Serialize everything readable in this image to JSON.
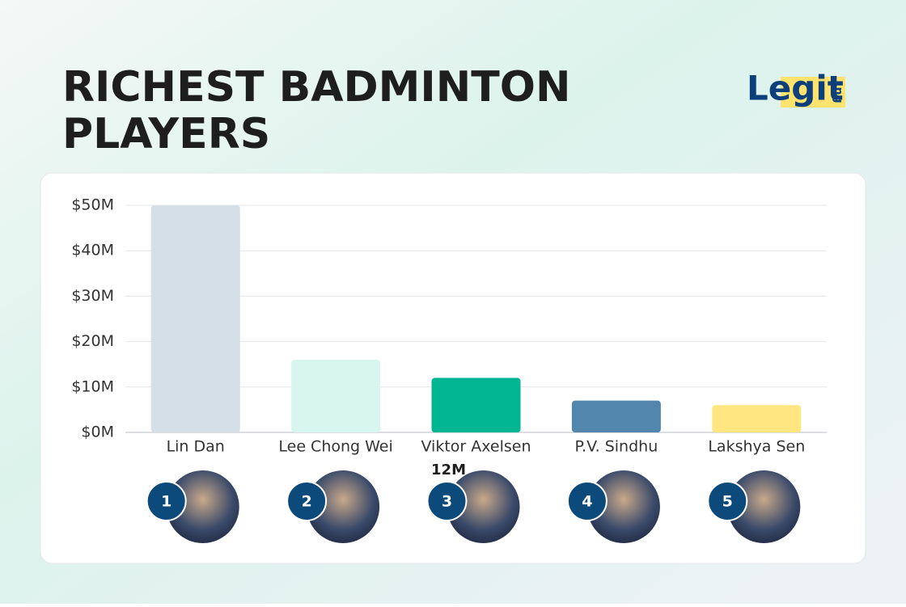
{
  "chart_data": {
    "type": "bar",
    "title": "RICHEST BADMINTON PLAYERS",
    "brand": "Legit",
    "brand_suffix": ".ng",
    "categories": [
      "Lin Dan",
      "Lee Chong Wei",
      "Viktor Axelsen",
      "P.V. Sindhu",
      "Lakshya Sen"
    ],
    "values": [
      50,
      16,
      12,
      7,
      6
    ],
    "value_labels": [
      null,
      null,
      "12M",
      null,
      null
    ],
    "colors": [
      "#d5dfe8",
      "#d8f5ee",
      "#00b592",
      "#5286ad",
      "#ffe680"
    ],
    "ranks": [
      1,
      2,
      3,
      4,
      5
    ],
    "ylim": [
      0,
      50
    ],
    "yticks": [
      {
        "value": 0,
        "label": "$0M"
      },
      {
        "value": 10,
        "label": "$10M"
      },
      {
        "value": 20,
        "label": "$20M"
      },
      {
        "value": 30,
        "label": "$30M"
      },
      {
        "value": 40,
        "label": "$40M"
      },
      {
        "value": 50,
        "label": "$50M"
      }
    ],
    "grid": true
  }
}
